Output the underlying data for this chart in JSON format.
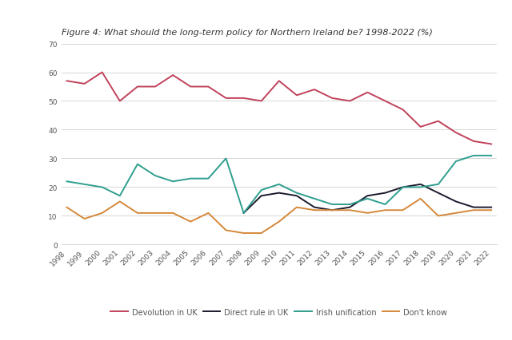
{
  "title": "Figure 4: What should the long-term policy for Northern Ireland be? 1998-2022 (%)",
  "years": [
    1998,
    1999,
    2000,
    2001,
    2002,
    2003,
    2004,
    2005,
    2006,
    2007,
    2008,
    2009,
    2010,
    2011,
    2012,
    2013,
    2014,
    2015,
    2016,
    2017,
    2018,
    2019,
    2020,
    2021,
    2022
  ],
  "devolution": [
    57,
    56,
    60,
    50,
    55,
    55,
    59,
    55,
    55,
    51,
    51,
    50,
    57,
    52,
    54,
    51,
    50,
    53,
    50,
    47,
    41,
    43,
    39,
    36,
    35
  ],
  "direct_rule": [
    null,
    null,
    null,
    null,
    null,
    null,
    null,
    null,
    null,
    null,
    11,
    17,
    18,
    17,
    13,
    12,
    13,
    17,
    18,
    20,
    21,
    18,
    15,
    13,
    13
  ],
  "irish_unif": [
    22,
    21,
    20,
    17,
    28,
    24,
    22,
    23,
    23,
    30,
    11,
    19,
    21,
    18,
    16,
    14,
    14,
    16,
    14,
    20,
    20,
    21,
    29,
    31,
    31
  ],
  "dont_know": [
    13,
    9,
    11,
    15,
    11,
    11,
    11,
    8,
    11,
    5,
    4,
    4,
    8,
    13,
    12,
    12,
    12,
    11,
    12,
    12,
    16,
    10,
    11,
    12,
    12
  ],
  "devolution_color": "#c0415a",
  "direct_rule_color": "#1a1a2e",
  "irish_unif_color": "#2e9e8e",
  "dont_know_color": "#d4883a",
  "background_color": "#ffffff",
  "plot_bg_color": "#f9f7f4",
  "grid_color": "#d0d0d0",
  "ylim": [
    0,
    70
  ],
  "yticks": [
    0,
    10,
    20,
    30,
    40,
    50,
    60,
    70
  ],
  "title_fontsize": 8.0,
  "tick_fontsize": 6.5,
  "legend_fontsize": 7.0,
  "line_width": 1.4,
  "legend_labels": [
    "Devolution in UK",
    "Direct rule in UK",
    "Irish unification",
    "Don't know"
  ]
}
